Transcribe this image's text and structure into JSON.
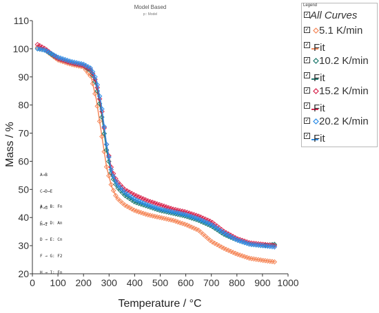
{
  "chart_data": {
    "type": "line",
    "title": "Model Based",
    "subtitle": "p:: Model",
    "xlabel": "Temperature / °C",
    "ylabel": "Mass / %",
    "xlim": [
      0,
      1000
    ],
    "ylim": [
      20,
      110
    ],
    "xticks": [
      "0",
      "100",
      "200",
      "300",
      "400",
      "500",
      "600",
      "700",
      "800",
      "900",
      "1000"
    ],
    "yticks": [
      "20",
      "30",
      "40",
      "50",
      "60",
      "70",
      "80",
      "90",
      "100",
      "110"
    ],
    "grid": false,
    "legend_placement": "right",
    "series": [
      {
        "name": "5.1 K/min",
        "color": "#f5885a",
        "marker": "diamond-open",
        "x": [
          20,
          50,
          100,
          150,
          200,
          230,
          250,
          270,
          290,
          310,
          330,
          360,
          400,
          450,
          500,
          550,
          600,
          650,
          700,
          750,
          800,
          850,
          900,
          950
        ],
        "y": [
          100.5,
          99.5,
          96,
          94.5,
          93.5,
          90,
          82,
          70,
          58,
          51,
          47,
          44.5,
          42.5,
          41,
          40,
          39,
          37.5,
          35.5,
          31.5,
          29,
          27,
          25.5,
          24.8,
          24.2
        ]
      },
      {
        "name": "10.2 K/min",
        "color": "#1f7a6e",
        "marker": "diamond-open",
        "x": [
          20,
          50,
          100,
          150,
          200,
          230,
          250,
          270,
          290,
          310,
          330,
          360,
          400,
          450,
          500,
          550,
          600,
          650,
          700,
          750,
          800,
          850,
          900,
          950
        ],
        "y": [
          100,
          99.5,
          96.5,
          95,
          94,
          92,
          87,
          77,
          64,
          55,
          51,
          48,
          45.5,
          44,
          42.5,
          41.5,
          40.5,
          39,
          37,
          34,
          32,
          30.5,
          30,
          30.5
        ]
      },
      {
        "name": "15.2 K/min",
        "color": "#d8264e",
        "marker": "diamond-open",
        "x": [
          20,
          50,
          100,
          150,
          200,
          230,
          250,
          270,
          290,
          310,
          330,
          360,
          400,
          450,
          500,
          550,
          600,
          650,
          700,
          750,
          800,
          850,
          900,
          950
        ],
        "y": [
          101.5,
          100,
          96.5,
          95,
          94,
          92.5,
          88,
          79,
          66,
          57,
          53,
          50,
          48,
          46,
          44.5,
          43,
          42,
          40.5,
          38.5,
          35,
          32.5,
          31,
          30.5,
          30
        ]
      },
      {
        "name": "20.2 K/min",
        "color": "#2f8fe8",
        "marker": "diamond-open",
        "x": [
          20,
          50,
          100,
          150,
          200,
          230,
          250,
          270,
          290,
          310,
          330,
          360,
          400,
          450,
          500,
          550,
          600,
          650,
          700,
          750,
          800,
          850,
          900,
          950
        ],
        "y": [
          100,
          99.5,
          97,
          95.5,
          94.5,
          93,
          89,
          80,
          66,
          56,
          52,
          49,
          46.5,
          44.5,
          43,
          42,
          41,
          39.5,
          37.5,
          34.5,
          32,
          30.5,
          30,
          29.5
        ]
      }
    ],
    "legend": {
      "title": "Legend",
      "entries": [
        {
          "label": "All Curves",
          "kind": "all"
        },
        {
          "label": "5.1 K/min",
          "kind": "marker",
          "color": "#f5885a"
        },
        {
          "label": "Fit",
          "kind": "line",
          "color": "#f5885a"
        },
        {
          "label": "10.2 K/min",
          "kind": "marker",
          "color": "#1f7a6e"
        },
        {
          "label": "Fit",
          "kind": "line",
          "color": "#1f7a6e"
        },
        {
          "label": "15.2 K/min",
          "kind": "marker",
          "color": "#d8264e"
        },
        {
          "label": "Fit",
          "kind": "line",
          "color": "#d8264e"
        },
        {
          "label": "20.2 K/min",
          "kind": "marker",
          "color": "#2f8fe8"
        },
        {
          "label": "Fit",
          "kind": "line",
          "color": "#2f8fe8"
        }
      ]
    },
    "annotations": {
      "steps": [
        "A→B",
        "C→D→E",
        "F→G",
        "H→I"
      ],
      "reactions": [
        "A → B: Fn",
        "C → D: An",
        "D → E: Cn",
        "F → G: F2",
        "H → I: Fn"
      ]
    }
  }
}
